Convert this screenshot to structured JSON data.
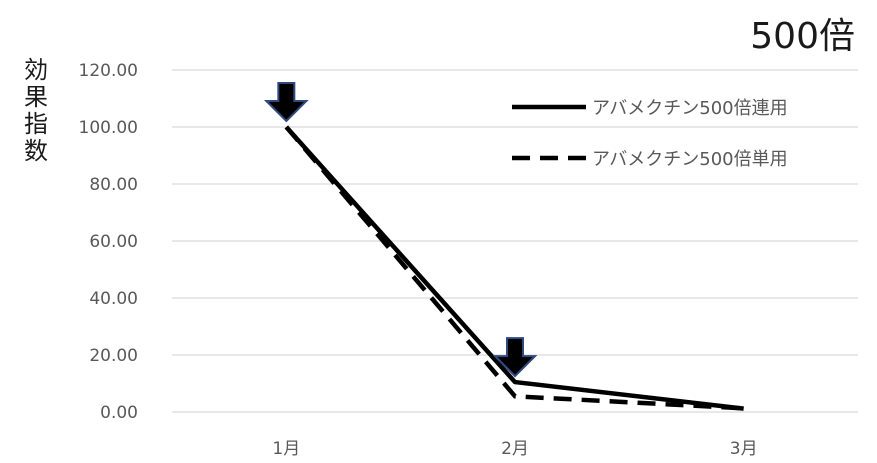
{
  "chart_data": {
    "type": "line",
    "title": "500倍",
    "xlabel": "",
    "ylabel": "効果指数",
    "categories": [
      "1月",
      "2月",
      "3月"
    ],
    "y_ticks": [
      "0.00",
      "20.00",
      "40.00",
      "60.00",
      "80.00",
      "100.00",
      "120.00"
    ],
    "ylim": [
      0,
      120
    ],
    "grid": true,
    "legend_position": "top-right",
    "series": [
      {
        "name": "アバメクチン500倍連用",
        "values": [
          100,
          10.5,
          1.2
        ],
        "style": "solid",
        "color": "#000000"
      },
      {
        "name": "アバメクチン500倍単用",
        "values": [
          100,
          5.5,
          1.3
        ],
        "style": "dashed",
        "color": "#000000"
      }
    ],
    "annotations": [
      {
        "type": "down-arrow",
        "category": "1月",
        "value": 100
      },
      {
        "type": "down-arrow",
        "category": "2月",
        "value": 10.5
      }
    ]
  }
}
